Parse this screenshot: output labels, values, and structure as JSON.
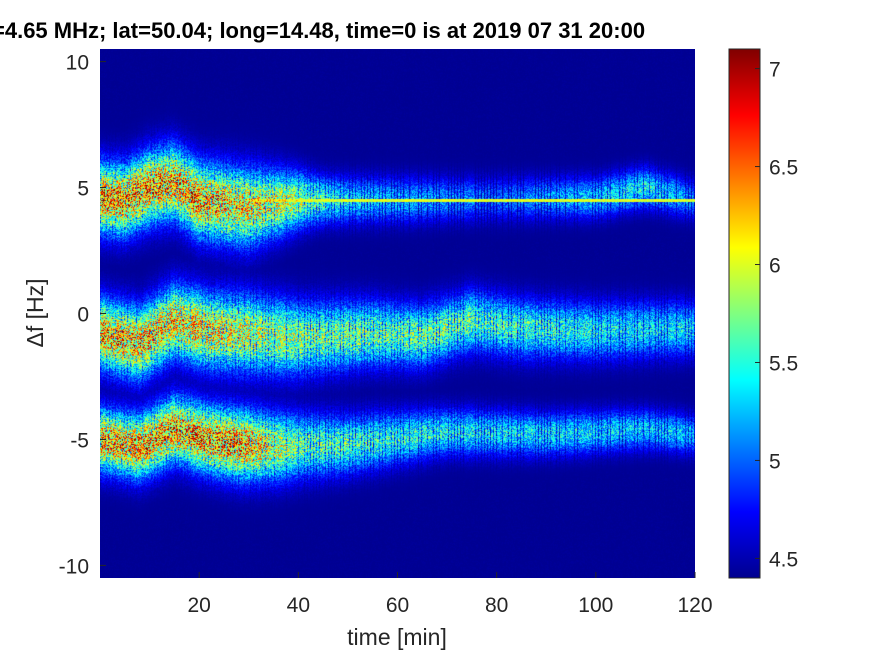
{
  "chart_data": {
    "type": "heatmap",
    "title": "=4.65 MHz;  lat=50.04; long=14.48, time=0 is at 2019 07 31 20:00",
    "xlabel": "time [min]",
    "ylabel": "Δf [Hz]",
    "xlim": [
      0,
      120
    ],
    "ylim": [
      -10.5,
      10.5
    ],
    "xticks": [
      20,
      40,
      60,
      80,
      100,
      120
    ],
    "xtick_labels": [
      "20",
      "40",
      "60",
      "80",
      "100",
      "120"
    ],
    "yticks": [
      10,
      5,
      0,
      -5,
      -10
    ],
    "ytick_labels": [
      "10",
      "5",
      "0",
      "-5",
      "-10"
    ],
    "colorbar": {
      "colormap": "jet",
      "clim": [
        4.4,
        7.1
      ],
      "ticks": [
        7,
        6.5,
        6,
        5.5,
        5,
        4.5
      ],
      "tick_labels": [
        "7",
        "6.5",
        "6",
        "5.5",
        "5",
        "4.5"
      ]
    },
    "background_level": 4.45,
    "bands": [
      {
        "center": [
          [
            0,
            4.6
          ],
          [
            5,
            4.5
          ],
          [
            10,
            5.0
          ],
          [
            15,
            5.2
          ],
          [
            20,
            4.5
          ],
          [
            30,
            4.2
          ],
          [
            40,
            4.5
          ],
          [
            60,
            4.5
          ],
          [
            100,
            4.6
          ],
          [
            110,
            5.0
          ],
          [
            120,
            4.5
          ]
        ],
        "width": [
          [
            0,
            0.9
          ],
          [
            30,
            1.0
          ],
          [
            45,
            0.6
          ],
          [
            120,
            0.5
          ]
        ],
        "peak": [
          [
            0,
            6.8
          ],
          [
            20,
            6.7
          ],
          [
            35,
            6.3
          ],
          [
            50,
            5.5
          ],
          [
            80,
            5.1
          ],
          [
            110,
            5.6
          ],
          [
            120,
            5.2
          ]
        ]
      },
      {
        "center": [
          [
            0,
            -0.8
          ],
          [
            8,
            -1.2
          ],
          [
            15,
            -0.3
          ],
          [
            22,
            -0.7
          ],
          [
            30,
            -0.8
          ],
          [
            40,
            -1.0
          ],
          [
            55,
            -0.8
          ],
          [
            65,
            -0.9
          ],
          [
            75,
            -0.3
          ],
          [
            85,
            -0.6
          ],
          [
            100,
            -0.7
          ],
          [
            120,
            -0.6
          ]
        ],
        "width": [
          [
            0,
            0.9
          ],
          [
            30,
            1.0
          ],
          [
            60,
            0.8
          ],
          [
            120,
            0.7
          ]
        ],
        "peak": [
          [
            0,
            6.7
          ],
          [
            20,
            6.5
          ],
          [
            40,
            6.0
          ],
          [
            70,
            5.9
          ],
          [
            100,
            5.6
          ],
          [
            120,
            5.5
          ]
        ]
      },
      {
        "center": [
          [
            0,
            -5.0
          ],
          [
            8,
            -5.3
          ],
          [
            15,
            -4.6
          ],
          [
            22,
            -5.0
          ],
          [
            28,
            -5.2
          ],
          [
            35,
            -5.3
          ],
          [
            50,
            -5.2
          ],
          [
            70,
            -4.7
          ],
          [
            90,
            -4.8
          ],
          [
            110,
            -4.6
          ],
          [
            120,
            -4.8
          ]
        ],
        "width": [
          [
            0,
            0.8
          ],
          [
            30,
            0.9
          ],
          [
            70,
            0.6
          ],
          [
            120,
            0.5
          ]
        ],
        "peak": [
          [
            0,
            6.7
          ],
          [
            28,
            6.8
          ],
          [
            40,
            5.9
          ],
          [
            70,
            5.6
          ],
          [
            100,
            5.5
          ],
          [
            120,
            5.4
          ]
        ]
      }
    ],
    "constant_line": {
      "y": 4.48,
      "x_range": [
        30,
        120
      ],
      "level": 6.0
    }
  }
}
